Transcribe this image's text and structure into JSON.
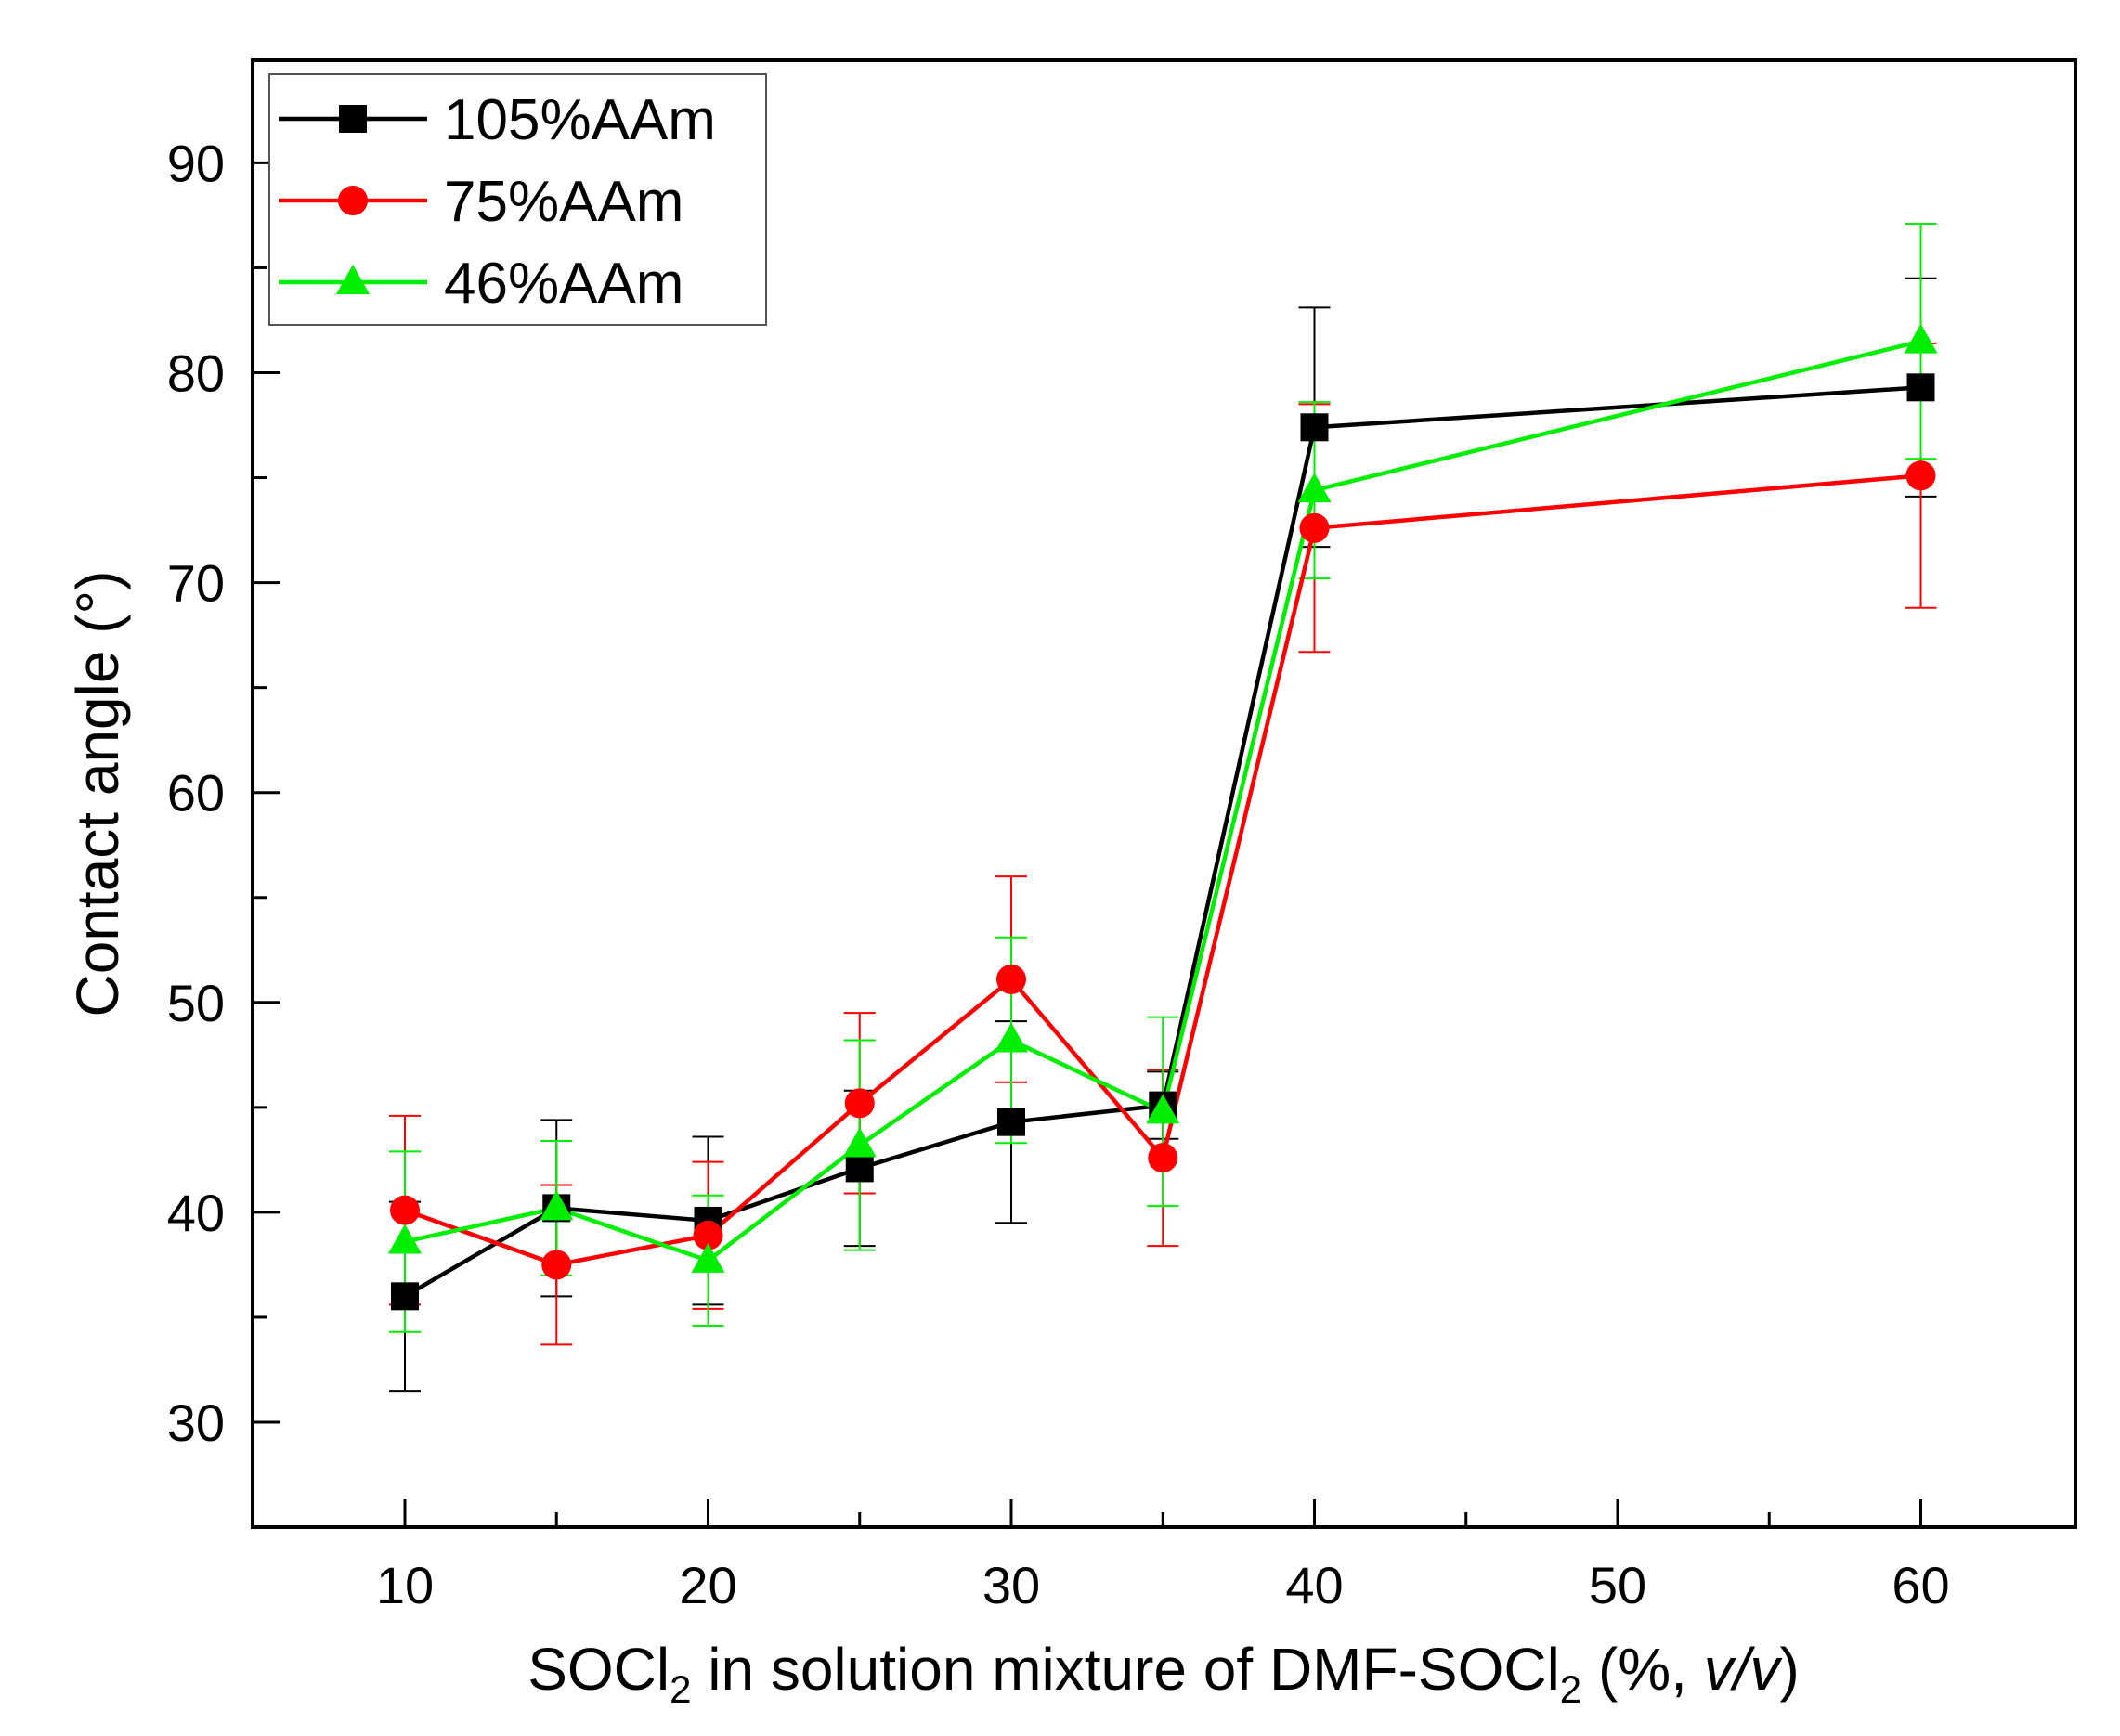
{
  "chart_data": {
    "type": "line",
    "xlabel": {
      "pre": "SOCl",
      "sub1": "2",
      "mid": " in solution mixture of DMF-SOCl",
      "sub2": "2",
      "post_open": " (%, ",
      "italic": "v/v",
      "post_close": ")"
    },
    "ylabel": "Contact angle (°)",
    "xlim": [
      5,
      65
    ],
    "ylim": [
      25,
      95
    ],
    "x_ticks": [
      10,
      20,
      30,
      40,
      50,
      60
    ],
    "x_tick_labels": [
      "10",
      "20",
      "30",
      "40",
      "50",
      "60"
    ],
    "x_minor_ticks": [
      15,
      25,
      35,
      45,
      55
    ],
    "y_ticks": [
      30,
      40,
      50,
      60,
      70,
      80,
      90
    ],
    "y_tick_labels": [
      "30",
      "40",
      "50",
      "60",
      "70",
      "80",
      "90"
    ],
    "y_minor_ticks": [
      35,
      45,
      55,
      65,
      75,
      85
    ],
    "grid": false,
    "legend_position": "top-left",
    "series": [
      {
        "name": "105%AAm",
        "color": "#000000",
        "marker": "square",
        "x": [
          10,
          15,
          20,
          25,
          30,
          35,
          40,
          60
        ],
        "y": [
          36.0,
          40.2,
          39.6,
          42.1,
          44.3,
          45.1,
          77.4,
          79.3
        ],
        "err": [
          4.5,
          4.2,
          4.0,
          3.7,
          4.8,
          1.6,
          5.7,
          5.2
        ]
      },
      {
        "name": "75%AAm",
        "color": "#ff0000",
        "marker": "circle",
        "x": [
          10,
          15,
          20,
          25,
          30,
          35,
          40,
          60
        ],
        "y": [
          40.1,
          37.5,
          38.9,
          45.2,
          51.1,
          42.6,
          72.6,
          75.1
        ],
        "err": [
          4.5,
          3.8,
          3.5,
          4.3,
          4.9,
          4.2,
          5.9,
          6.3
        ]
      },
      {
        "name": "46%AAm",
        "color": "#00ee00",
        "marker": "triangle",
        "x": [
          10,
          15,
          20,
          25,
          30,
          35,
          40,
          60
        ],
        "y": [
          38.6,
          40.2,
          37.7,
          43.2,
          48.2,
          44.8,
          74.4,
          81.5
        ],
        "err": [
          4.3,
          3.2,
          3.1,
          5.0,
          4.9,
          4.5,
          4.2,
          5.6
        ]
      }
    ]
  }
}
